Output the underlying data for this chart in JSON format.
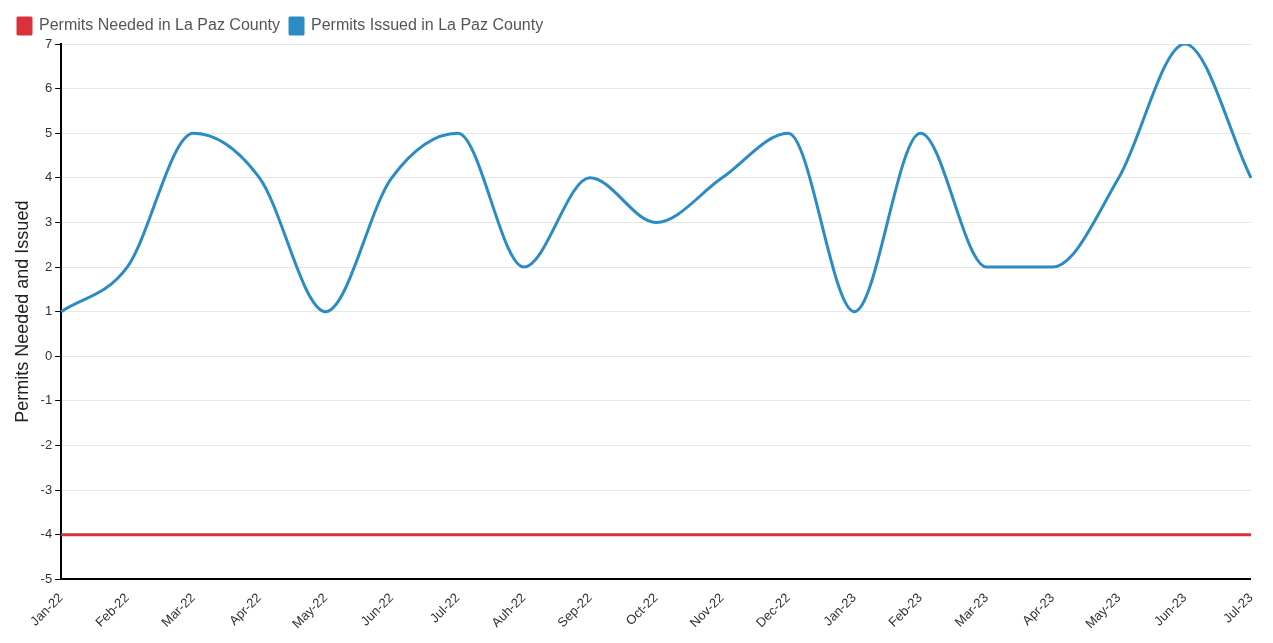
{
  "chart_data": {
    "type": "line",
    "ylabel": "Permits Needed and Issued",
    "categories": [
      "Jan-22",
      "Feb-22",
      "Mar-22",
      "Apr-22",
      "May-22",
      "Jun-22",
      "Jul-22",
      "Auh-22",
      "Sep-22",
      "Oct-22",
      "Nov-22",
      "Dec-22",
      "Jan-23",
      "Feb-23",
      "Mar-23",
      "Apr-23",
      "May-23",
      "Jun-23",
      "Jul-23"
    ],
    "series": [
      {
        "name": "Permits Needed in La Paz County",
        "color": "#d9323a",
        "values": [
          -4,
          -4,
          -4,
          -4,
          -4,
          -4,
          -4,
          -4,
          -4,
          -4,
          -4,
          -4,
          -4,
          -4,
          -4,
          -4,
          -4,
          -4,
          -4
        ]
      },
      {
        "name": "Permits Issued in La Paz County",
        "color": "#2b8cc4",
        "values": [
          1,
          2,
          5,
          4,
          1,
          4,
          5,
          2,
          4,
          3,
          4,
          5,
          1,
          5,
          2,
          2,
          4,
          7,
          4
        ]
      }
    ],
    "ylim": [
      -5,
      7
    ],
    "yticks": [
      -5,
      -4,
      -3,
      -2,
      -1,
      0,
      1,
      2,
      3,
      4,
      5,
      6,
      7
    ],
    "grid": "y",
    "legend": "top left",
    "marker": "none",
    "line_style": "solid"
  }
}
